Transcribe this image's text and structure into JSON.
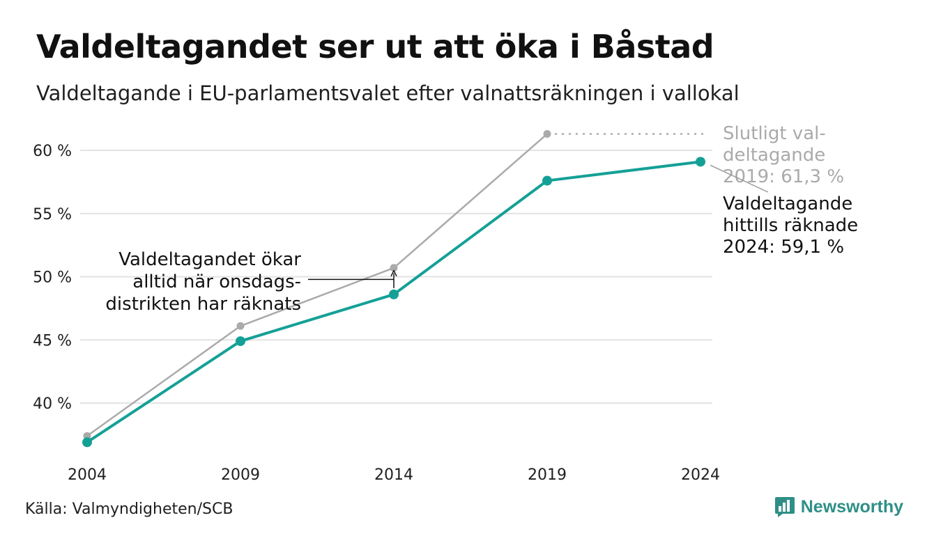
{
  "header": {
    "title": "Valdeltagandet ser ut att öka i Båstad",
    "subtitle": "Valdeltagande i EU-parlamentsvalet efter valnattsräkningen i vallokal"
  },
  "footer": {
    "source": "Källa: Valmyndigheten/SCB",
    "brand": "Newsworthy"
  },
  "colors": {
    "counted": "#14a096",
    "final": "#aaaaaa",
    "grid": "#e3e3e3",
    "brand": "#2f8f87"
  },
  "chart_data": {
    "type": "line",
    "title": "Valdeltagandet ser ut att öka i Båstad",
    "subtitle": "Valdeltagande i EU-parlamentsvalet efter valnattsräkningen i vallokal",
    "x": [
      "2004",
      "2009",
      "2014",
      "2019",
      "2024"
    ],
    "ylim": [
      36.5,
      62
    ],
    "yticks": [
      40,
      45,
      50,
      55,
      60
    ],
    "ytick_labels": [
      "40 %",
      "45 %",
      "50 %",
      "55 %",
      "60 %"
    ],
    "grid": true,
    "series": [
      {
        "key": "final",
        "name": "Slutligt valdeltagande",
        "values": [
          37.4,
          46.1,
          50.7,
          61.3,
          null
        ]
      },
      {
        "key": "counted",
        "name": "Valdeltagande hittills räknade",
        "values": [
          36.9,
          44.9,
          48.6,
          57.6,
          59.1
        ]
      }
    ],
    "annotations": {
      "final_label_lines": [
        "Slutligt val-",
        "deltagande",
        "2019: 61,3 %"
      ],
      "counted_label_lines": [
        "Valdeltagande",
        "hittills räknade",
        "2024: 59,1 %"
      ],
      "gap_label_lines": [
        "Valdeltagandet ökar",
        "alltid när onsdags-",
        "distrikten har räknats"
      ]
    }
  }
}
